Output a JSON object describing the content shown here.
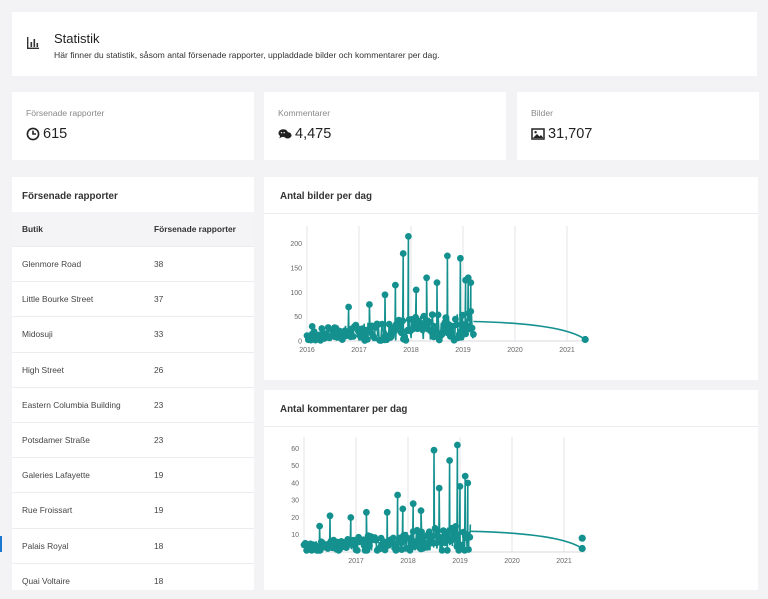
{
  "header": {
    "title": "Statistik",
    "description": "Här finner du statistik, såsom antal försenade rapporter, uppladdade bilder och kommentarer per dag."
  },
  "stats": [
    {
      "label": "Försenade rapporter",
      "value": "615",
      "icon": "clock-icon"
    },
    {
      "label": "Kommentarer",
      "value": "4,475",
      "icon": "chat-icon"
    },
    {
      "label": "Bilder",
      "value": "31,707",
      "icon": "image-icon"
    }
  ],
  "reports_table": {
    "title": "Försenade rapporter",
    "columns": [
      "Butik",
      "Försenade rapporter"
    ],
    "rows": [
      [
        "Glenmore Road",
        "38"
      ],
      [
        "Little Bourke Street",
        "37"
      ],
      [
        "Midosuji",
        "33"
      ],
      [
        "High Street",
        "26"
      ],
      [
        "Eastern Columbia Building",
        "23"
      ],
      [
        "Potsdamer Straße",
        "23"
      ],
      [
        "Galeries Lafayette",
        "19"
      ],
      [
        "Rue Froissart",
        "19"
      ],
      [
        "Palais Royal",
        "18"
      ],
      [
        "Quai Voltaire",
        "18"
      ]
    ]
  },
  "accent_color": "#14918f",
  "chart_data": [
    {
      "type": "line",
      "title": "Antal bilder per dag",
      "x_ticks": [
        "2016",
        "2017",
        "2018",
        "2019",
        "2020",
        "2021"
      ],
      "y_ticks": [
        0,
        50,
        100,
        150,
        200
      ],
      "ylim": [
        0,
        220
      ],
      "xlim": [
        2016.0,
        2021.4
      ],
      "dense_range": [
        2016.0,
        2019.2
      ],
      "peaks": [
        [
          2016.1,
          30
        ],
        [
          2016.8,
          70
        ],
        [
          2017.2,
          75
        ],
        [
          2017.5,
          95
        ],
        [
          2017.7,
          115
        ],
        [
          2017.85,
          180
        ],
        [
          2017.95,
          215
        ],
        [
          2018.1,
          105
        ],
        [
          2018.3,
          130
        ],
        [
          2018.5,
          120
        ],
        [
          2018.7,
          175
        ],
        [
          2018.95,
          170
        ],
        [
          2019.05,
          125
        ],
        [
          2019.1,
          130
        ],
        [
          2019.15,
          120
        ]
      ],
      "tail": [
        [
          2019.2,
          40
        ],
        [
          2021.35,
          3
        ]
      ],
      "grid": "vertical"
    },
    {
      "type": "line",
      "title": "Antal kommentarer per dag",
      "x_ticks": [
        "2017",
        "2018",
        "2019",
        "2020",
        "2021"
      ],
      "y_ticks": [
        10,
        20,
        30,
        40,
        50,
        60
      ],
      "ylim": [
        0,
        62
      ],
      "xlim": [
        2016.0,
        2021.4
      ],
      "dense_range": [
        2016.0,
        2019.2
      ],
      "peaks": [
        [
          2016.3,
          15
        ],
        [
          2016.5,
          21
        ],
        [
          2016.9,
          20
        ],
        [
          2017.2,
          23
        ],
        [
          2017.6,
          23
        ],
        [
          2017.8,
          33
        ],
        [
          2017.9,
          25
        ],
        [
          2018.1,
          28
        ],
        [
          2018.25,
          24
        ],
        [
          2018.5,
          59
        ],
        [
          2018.6,
          37
        ],
        [
          2018.8,
          53
        ],
        [
          2018.95,
          62
        ],
        [
          2019.0,
          38
        ],
        [
          2019.1,
          44
        ],
        [
          2019.15,
          40
        ]
      ],
      "tail": [
        [
          2019.2,
          12
        ],
        [
          2021.35,
          2
        ],
        [
          2021.35,
          8
        ]
      ],
      "grid": "vertical"
    }
  ]
}
